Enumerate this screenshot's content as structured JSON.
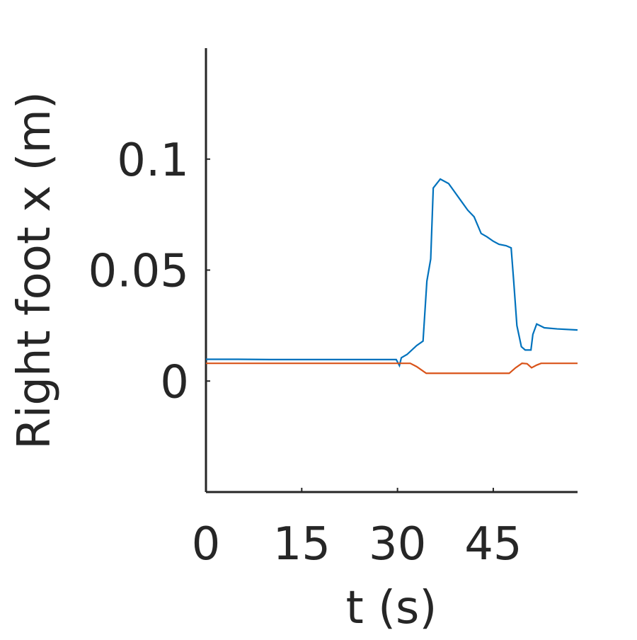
{
  "chart_data": {
    "type": "line",
    "xlabel": "t (s)",
    "ylabel": "Right foot x (m)",
    "xlim": [
      0,
      58.2
    ],
    "ylim": [
      -0.05,
      0.15
    ],
    "xticks": [
      0,
      15,
      30,
      45
    ],
    "yticks": [
      0,
      0.05,
      0.1
    ],
    "grid": false,
    "series": [
      {
        "color": "#0072BD",
        "x": [
          0,
          5,
          10,
          20,
          29.8,
          30.3,
          30.6,
          31.5,
          33,
          34,
          34.6,
          35.2,
          35.6,
          36.7,
          38,
          39,
          40,
          41,
          42,
          43.1,
          44,
          45,
          45.9,
          47,
          47.8,
          48.2,
          48.7,
          49.4,
          50,
          50.9,
          51.2,
          51.8,
          53,
          55,
          58.2
        ],
        "values": [
          0.0098,
          0.0098,
          0.0097,
          0.0097,
          0.0097,
          0.007,
          0.0105,
          0.012,
          0.016,
          0.018,
          0.045,
          0.055,
          0.087,
          0.091,
          0.089,
          0.085,
          0.081,
          0.077,
          0.074,
          0.0665,
          0.065,
          0.063,
          0.0616,
          0.061,
          0.06,
          0.045,
          0.025,
          0.0155,
          0.014,
          0.014,
          0.021,
          0.0257,
          0.024,
          0.0235,
          0.023
        ]
      },
      {
        "color": "#D95319",
        "x": [
          0,
          10,
          20,
          32,
          33,
          34.5,
          40,
          47.5,
          48.5,
          49.5,
          50.3,
          51,
          51.8,
          52.5,
          58.2
        ],
        "values": [
          0.008,
          0.008,
          0.008,
          0.008,
          0.0065,
          0.0035,
          0.0035,
          0.0035,
          0.006,
          0.008,
          0.0078,
          0.006,
          0.0072,
          0.008,
          0.008
        ]
      }
    ]
  }
}
